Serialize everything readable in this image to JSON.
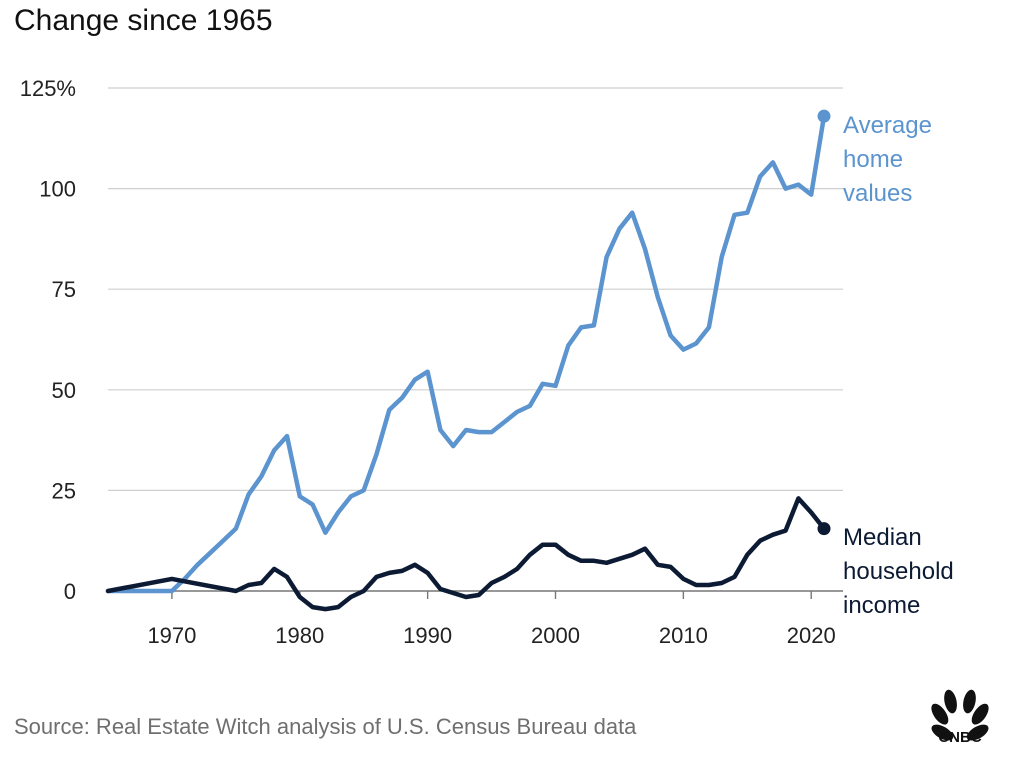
{
  "header": {
    "title": "Change since 1965"
  },
  "footer": {
    "source": "Source: Real Estate Witch analysis of U.S. Census Bureau data",
    "logo_text": "CNBC"
  },
  "colors": {
    "home": "#5b94cf",
    "income": "#0c1b33",
    "grid": "#cfcfcf"
  },
  "chart_data": {
    "type": "line",
    "title": "Change since 1965",
    "xlabel": "",
    "ylabel": "",
    "xlim": [
      1965,
      2021
    ],
    "ylim": [
      0,
      125
    ],
    "x_ticks": [
      "1970",
      "1980",
      "1990",
      "2000",
      "2010",
      "2020"
    ],
    "y_ticks": [
      "0",
      "25",
      "50",
      "75",
      "100",
      "125%"
    ],
    "y_tick_values": [
      0,
      25,
      50,
      75,
      100,
      125
    ],
    "grid": true,
    "series": [
      {
        "name": "Average home values",
        "label_lines": [
          "Average",
          "home",
          "values"
        ],
        "color": "#5b94cf",
        "x": [
          1965,
          1970,
          1971,
          1972,
          1973,
          1974,
          1975,
          1976,
          1977,
          1978,
          1979,
          1980,
          1981,
          1982,
          1983,
          1984,
          1985,
          1986,
          1987,
          1988,
          1989,
          1990,
          1991,
          1992,
          1993,
          1994,
          1995,
          1996,
          1997,
          1998,
          1999,
          2000,
          2001,
          2002,
          2003,
          2004,
          2005,
          2006,
          2007,
          2008,
          2009,
          2010,
          2011,
          2012,
          2013,
          2014,
          2015,
          2016,
          2017,
          2018,
          2019,
          2020,
          2021
        ],
        "y": [
          0,
          0,
          3,
          6.5,
          9.5,
          12.5,
          15.5,
          24,
          28.5,
          35,
          38.5,
          23.5,
          21.5,
          14.5,
          19.5,
          23.5,
          25,
          34,
          45,
          48,
          52.5,
          54.5,
          40,
          36,
          40,
          39.5,
          39.5,
          42,
          44.5,
          46,
          51.5,
          51,
          61,
          65.5,
          66,
          83,
          90,
          94,
          85,
          73,
          63.5,
          60,
          61.5,
          65.5,
          83,
          93.5,
          94,
          103,
          106.5,
          100,
          101,
          98.5,
          118
        ]
      },
      {
        "name": "Median household income",
        "label_lines": [
          "Median",
          "household",
          "income"
        ],
        "color": "#0c1b33",
        "x": [
          1965,
          1970,
          1975,
          1976,
          1977,
          1978,
          1979,
          1980,
          1981,
          1982,
          1983,
          1984,
          1985,
          1986,
          1987,
          1988,
          1989,
          1990,
          1991,
          1992,
          1993,
          1994,
          1995,
          1996,
          1997,
          1998,
          1999,
          2000,
          2001,
          2002,
          2003,
          2004,
          2005,
          2006,
          2007,
          2008,
          2009,
          2010,
          2011,
          2012,
          2013,
          2014,
          2015,
          2016,
          2017,
          2018,
          2019,
          2020,
          2021
        ],
        "y": [
          0,
          3,
          0,
          1.5,
          2,
          5.5,
          3.5,
          -1.5,
          -4,
          -4.5,
          -4,
          -1.5,
          0,
          3.5,
          4.5,
          5,
          6.5,
          4.5,
          0.5,
          -0.5,
          -1.5,
          -1,
          2,
          3.5,
          5.5,
          9,
          11.5,
          11.5,
          9,
          7.5,
          7.5,
          7,
          8,
          9,
          10.5,
          6.5,
          6,
          3,
          1.5,
          1.5,
          2,
          3.5,
          9,
          12.5,
          14,
          15,
          23,
          19.5,
          15.5
        ]
      }
    ]
  }
}
